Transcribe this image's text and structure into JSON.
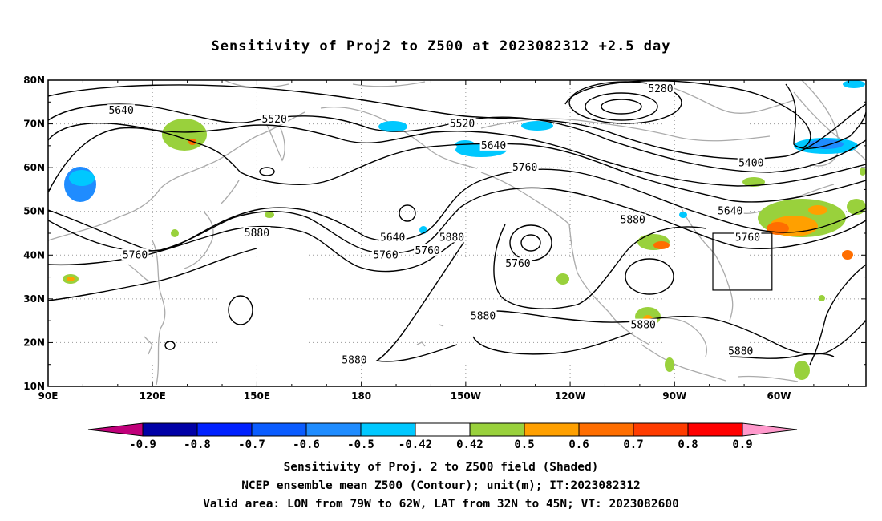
{
  "title": "Sensitivity of Proj2 to Z500 at 2023082312 +2.5 day",
  "captions": [
    "Sensitivity of Proj. 2 to Z500 field (Shaded)",
    "NCEP ensemble mean Z500 (Contour); unit(m); IT:2023082312",
    "Valid area: LON from 79W to 62W, LAT from 32N to 45N; VT: 2023082600"
  ],
  "map": {
    "lat_labels": [
      "80N",
      "70N",
      "60N",
      "50N",
      "40N",
      "30N",
      "20N",
      "10N"
    ],
    "lon_labels": [
      "90E",
      "120E",
      "150E",
      "180",
      "150W",
      "120W",
      "90W",
      "60W"
    ],
    "valid_box": {
      "lon_min": -79,
      "lon_max": -62,
      "lat_min": 32,
      "lat_max": 45
    },
    "contour_labels": [
      {
        "text": "5280",
        "lon": -94,
        "lat": 78
      },
      {
        "text": "5520",
        "lon": 155,
        "lat": 71
      },
      {
        "text": "5520",
        "lon": -151,
        "lat": 70
      },
      {
        "text": "5640",
        "lon": 111,
        "lat": 73
      },
      {
        "text": "5640",
        "lon": -142,
        "lat": 65
      },
      {
        "text": "5400",
        "lon": -68,
        "lat": 61
      },
      {
        "text": "5760",
        "lon": -133,
        "lat": 60
      },
      {
        "text": "5640",
        "lon": -74,
        "lat": 50
      },
      {
        "text": "5880",
        "lon": -102,
        "lat": 48
      },
      {
        "text": "5760",
        "lon": -69,
        "lat": 44
      },
      {
        "text": "5880",
        "lon": 150,
        "lat": 45
      },
      {
        "text": "5760",
        "lon": -161,
        "lat": 41
      },
      {
        "text": "5640",
        "lon": -171,
        "lat": 44
      },
      {
        "text": "5880",
        "lon": -154,
        "lat": 44
      },
      {
        "text": "5760",
        "lon": -173,
        "lat": 40
      },
      {
        "text": "5760",
        "lon": -135,
        "lat": 38
      },
      {
        "text": "5760",
        "lon": 115,
        "lat": 40
      },
      {
        "text": "5880",
        "lon": -145,
        "lat": 26
      },
      {
        "text": "5880",
        "lon": -99,
        "lat": 24
      },
      {
        "text": "5880",
        "lon": -182,
        "lat": 16
      },
      {
        "text": "5880",
        "lon": -71,
        "lat": 18
      }
    ]
  },
  "colorbar": {
    "labels": [
      "-0.9",
      "-0.8",
      "-0.7",
      "-0.6",
      "-0.5",
      "-0.42",
      "0.42",
      "0.5",
      "0.6",
      "0.7",
      "0.8",
      "0.9"
    ],
    "colors": [
      "#0000a6",
      "#0021ff",
      "#0a5cff",
      "#1f8cff",
      "#00c8ff",
      "#ffffff",
      "#99d13c",
      "#ffa000",
      "#ff6e00",
      "#ff3c00",
      "#ff0000"
    ],
    "low_end_color": "#c0007a",
    "high_end_color": "#ff99cc"
  }
}
